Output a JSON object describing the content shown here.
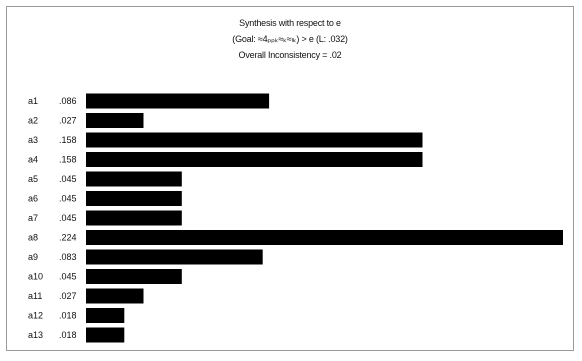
{
  "chart_data": {
    "type": "bar",
    "orientation": "horizontal",
    "title": "Synthesis with respect to e",
    "subtitle": "(Goal: ≈4ₚₚₖ≈ₖ≈ₗₖ) > e (L: .032)",
    "inconsistency_text": "Overall Inconsistency = .02",
    "categories": [
      "a1",
      "a2",
      "a3",
      "a4",
      "a5",
      "a6",
      "a7",
      "a8",
      "a9",
      "a10",
      "a11",
      "a12",
      "a13"
    ],
    "value_labels": [
      ".086",
      ".027",
      ".158",
      ".158",
      ".045",
      ".045",
      ".045",
      ".224",
      ".083",
      ".045",
      ".027",
      ".018",
      ".018"
    ],
    "values": [
      0.086,
      0.027,
      0.158,
      0.158,
      0.045,
      0.045,
      0.045,
      0.224,
      0.083,
      0.045,
      0.027,
      0.018,
      0.018
    ],
    "xlim": [
      0,
      0.224
    ],
    "grid": false,
    "legend": "none",
    "bar_color": "#000000"
  }
}
